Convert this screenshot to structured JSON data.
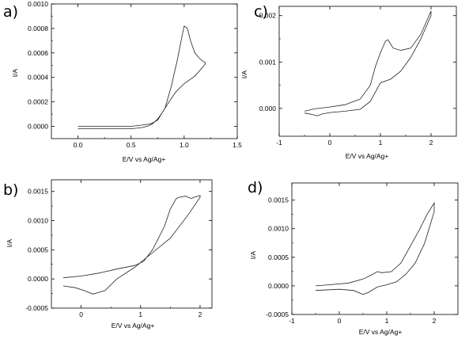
{
  "chart_data": [
    {
      "type": "line",
      "panel_label": "a)",
      "xlabel": "E/V vs Ag/Ag+",
      "ylabel": "I/A",
      "xlim": [
        -0.25,
        1.5
      ],
      "ylim": [
        -0.0001,
        0.001
      ],
      "xticks": [
        0.0,
        0.5,
        1.0,
        1.5
      ],
      "xtick_labels": [
        "0.0",
        "0.5",
        "1.0",
        "1.5"
      ],
      "yticks": [
        0.0,
        0.0002,
        0.0004,
        0.0006,
        0.0008,
        0.001
      ],
      "ytick_labels": [
        "0.0000",
        "0.0002",
        "0.0004",
        "0.0006",
        "0.0008",
        "0.0010"
      ],
      "frame": "full",
      "series": [
        {
          "x": [
            0.0,
            0.3,
            0.5,
            0.6,
            0.68,
            0.75,
            0.82,
            0.88,
            0.94,
            0.98,
            1.0,
            1.03,
            1.06,
            1.1,
            1.15,
            1.2,
            1.2,
            1.15,
            1.1,
            1.0,
            0.92,
            0.85,
            0.8,
            0.75,
            0.7,
            0.65,
            0.6,
            0.5,
            0.3,
            0.0
          ],
          "y": [
            0.0,
            0.0,
            0.0,
            1e-05,
            2e-05,
            5e-05,
            0.00015,
            0.00033,
            0.00056,
            0.00074,
            0.00082,
            0.0008,
            0.0007,
            0.0006,
            0.00055,
            0.00052,
            0.00051,
            0.00046,
            0.00041,
            0.00035,
            0.00028,
            0.00019,
            0.00012,
            6e-05,
            2e-05,
            0.0,
            -1e-05,
            -2e-05,
            -2e-05,
            -2e-05
          ]
        }
      ]
    },
    {
      "type": "line",
      "panel_label": "c)",
      "xlabel": "E/V vs Ag/Ag+",
      "ylabel": "I/A",
      "xlim": [
        -1,
        2.5
      ],
      "ylim": [
        -0.0006,
        0.0022
      ],
      "xticks": [
        -1,
        0,
        1,
        2
      ],
      "xtick_labels": [
        "-1",
        "0",
        "1",
        "2"
      ],
      "yticks": [
        0.0,
        0.001,
        0.002
      ],
      "ytick_labels": [
        "0.000",
        "0.001",
        "0.002"
      ],
      "frame": "full",
      "series": [
        {
          "x": [
            -0.5,
            -0.3,
            0.0,
            0.3,
            0.6,
            0.8,
            0.9,
            1.0,
            1.1,
            1.15,
            1.25,
            1.4,
            1.6,
            1.8,
            2.0,
            2.0,
            1.8,
            1.6,
            1.4,
            1.2,
            1.0,
            0.8,
            0.6,
            0.3,
            0.0,
            -0.15,
            -0.25,
            -0.35,
            -0.5
          ],
          "y": [
            -6e-05,
            -1e-05,
            3e-05,
            8e-05,
            0.0002,
            0.0005,
            0.0009,
            0.0012,
            0.00145,
            0.00148,
            0.0013,
            0.00125,
            0.0013,
            0.0016,
            0.0021,
            0.002,
            0.0015,
            0.0011,
            0.0008,
            0.00063,
            0.00055,
            0.00015,
            -2e-05,
            -6e-05,
            -9e-05,
            -0.00012,
            -0.00016,
            -0.00013,
            -0.0001
          ]
        }
      ]
    },
    {
      "type": "line",
      "panel_label": "b)",
      "xlabel": "E/V vs Ag/Ag+",
      "ylabel": "I/A",
      "xlim": [
        -0.5,
        2.2
      ],
      "ylim": [
        -0.0005,
        0.0017
      ],
      "xticks": [
        0,
        1,
        2
      ],
      "xtick_labels": [
        "0",
        "1",
        "2"
      ],
      "yticks": [
        -0.0005,
        0.0,
        0.0005,
        0.001,
        0.0015
      ],
      "ytick_labels": [
        "-0.0005",
        "0.0000",
        "0.0005",
        "0.0010",
        "0.0015"
      ],
      "frame": "full",
      "series": [
        {
          "x": [
            -0.3,
            0.0,
            0.3,
            0.6,
            0.9,
            1.05,
            1.2,
            1.4,
            1.5,
            1.6,
            1.65,
            1.75,
            1.85,
            1.9,
            2.0,
            2.0,
            1.8,
            1.5,
            1.2,
            0.9,
            0.6,
            0.4,
            0.2,
            0.05,
            -0.1,
            -0.3
          ],
          "y": [
            2e-05,
            5e-05,
            0.0001,
            0.00017,
            0.00023,
            0.0003,
            0.0005,
            0.0009,
            0.0012,
            0.00138,
            0.0014,
            0.00142,
            0.00138,
            0.0014,
            0.00143,
            0.0014,
            0.0011,
            0.0007,
            0.00045,
            0.0002,
            0.0,
            -0.0002,
            -0.00026,
            -0.0002,
            -0.00015,
            -0.00012
          ]
        }
      ]
    },
    {
      "type": "line",
      "panel_label": "d)",
      "xlabel": "E/V vs Ag/Ag+",
      "ylabel": "I/A",
      "xlim": [
        -1,
        2.5
      ],
      "ylim": [
        -0.0005,
        0.0018
      ],
      "xticks": [
        -1,
        0,
        1,
        2
      ],
      "xtick_labels": [
        "-1",
        "0",
        "1",
        "2"
      ],
      "yticks": [
        -0.0005,
        0.0,
        0.0005,
        0.001,
        0.0015
      ],
      "ytick_labels": [
        "-0.0005",
        "0.0000",
        "0.0005",
        "0.0010",
        "0.0015"
      ],
      "frame": "full",
      "series": [
        {
          "x": [
            -0.5,
            -0.2,
            0.2,
            0.5,
            0.7,
            0.8,
            0.9,
            1.1,
            1.3,
            1.5,
            1.7,
            1.85,
            2.0,
            2.0,
            1.8,
            1.6,
            1.4,
            1.2,
            1.0,
            0.8,
            0.6,
            0.5,
            0.3,
            0.0,
            -0.5
          ],
          "y": [
            0.0,
            2e-05,
            5e-05,
            0.00012,
            0.0002,
            0.00025,
            0.00023,
            0.00025,
            0.0004,
            0.0007,
            0.001,
            0.00125,
            0.00145,
            0.0013,
            0.00075,
            0.0004,
            0.0002,
            7e-05,
            2e-05,
            -2e-05,
            -0.00012,
            -0.00015,
            -8e-05,
            -6e-05,
            -8e-05
          ]
        }
      ]
    }
  ]
}
